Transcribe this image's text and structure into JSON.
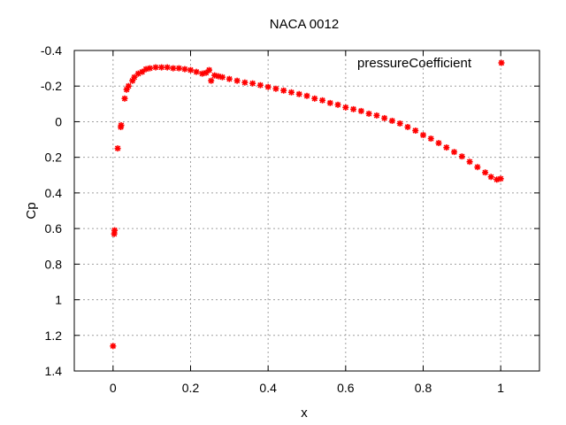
{
  "chart_data": {
    "type": "scatter",
    "title": "NACA 0012",
    "xlabel": "x",
    "ylabel": "Cp",
    "xlim": [
      -0.1,
      1.1
    ],
    "ylim": [
      1.4,
      -0.4
    ],
    "y_inverted": true,
    "grid": true,
    "legend_position": "top-right",
    "xticks": [
      "0",
      "0.2",
      "0.4",
      "0.6",
      "0.8",
      "1"
    ],
    "xtick_values": [
      0,
      0.2,
      0.4,
      0.6,
      0.8,
      1.0
    ],
    "yticks": [
      "-0.4",
      "-0.2",
      "0",
      "0.2",
      "0.4",
      "0.6",
      "0.8",
      "1",
      "1.2",
      "1.4"
    ],
    "ytick_values": [
      -0.4,
      -0.2,
      0,
      0.2,
      0.4,
      0.6,
      0.8,
      1.0,
      1.2,
      1.4
    ],
    "series": [
      {
        "name": "pressureCoefficient",
        "color": "#ff0000",
        "marker": "star",
        "points": [
          [
            0.0,
            1.26
          ],
          [
            0.003,
            0.63
          ],
          [
            0.004,
            0.61
          ],
          [
            0.012,
            0.15
          ],
          [
            0.02,
            0.03
          ],
          [
            0.021,
            0.02
          ],
          [
            0.03,
            -0.13
          ],
          [
            0.035,
            -0.18
          ],
          [
            0.04,
            -0.2
          ],
          [
            0.05,
            -0.23
          ],
          [
            0.055,
            -0.25
          ],
          [
            0.065,
            -0.27
          ],
          [
            0.075,
            -0.28
          ],
          [
            0.085,
            -0.295
          ],
          [
            0.095,
            -0.3
          ],
          [
            0.11,
            -0.305
          ],
          [
            0.125,
            -0.305
          ],
          [
            0.14,
            -0.305
          ],
          [
            0.155,
            -0.3
          ],
          [
            0.17,
            -0.3
          ],
          [
            0.185,
            -0.295
          ],
          [
            0.2,
            -0.29
          ],
          [
            0.215,
            -0.28
          ],
          [
            0.23,
            -0.27
          ],
          [
            0.24,
            -0.275
          ],
          [
            0.248,
            -0.29
          ],
          [
            0.253,
            -0.23
          ],
          [
            0.262,
            -0.26
          ],
          [
            0.272,
            -0.255
          ],
          [
            0.282,
            -0.25
          ],
          [
            0.3,
            -0.24
          ],
          [
            0.32,
            -0.23
          ],
          [
            0.34,
            -0.22
          ],
          [
            0.36,
            -0.215
          ],
          [
            0.38,
            -0.205
          ],
          [
            0.4,
            -0.195
          ],
          [
            0.42,
            -0.185
          ],
          [
            0.44,
            -0.175
          ],
          [
            0.46,
            -0.165
          ],
          [
            0.48,
            -0.155
          ],
          [
            0.5,
            -0.145
          ],
          [
            0.52,
            -0.13
          ],
          [
            0.54,
            -0.12
          ],
          [
            0.56,
            -0.105
          ],
          [
            0.58,
            -0.095
          ],
          [
            0.6,
            -0.08
          ],
          [
            0.62,
            -0.07
          ],
          [
            0.64,
            -0.06
          ],
          [
            0.66,
            -0.045
          ],
          [
            0.68,
            -0.035
          ],
          [
            0.7,
            -0.02
          ],
          [
            0.72,
            -0.005
          ],
          [
            0.74,
            0.01
          ],
          [
            0.76,
            0.03
          ],
          [
            0.78,
            0.05
          ],
          [
            0.8,
            0.075
          ],
          [
            0.82,
            0.095
          ],
          [
            0.84,
            0.12
          ],
          [
            0.86,
            0.145
          ],
          [
            0.88,
            0.17
          ],
          [
            0.9,
            0.195
          ],
          [
            0.92,
            0.225
          ],
          [
            0.94,
            0.255
          ],
          [
            0.96,
            0.285
          ],
          [
            0.975,
            0.31
          ],
          [
            0.99,
            0.325
          ],
          [
            1.0,
            0.32
          ]
        ]
      }
    ]
  }
}
